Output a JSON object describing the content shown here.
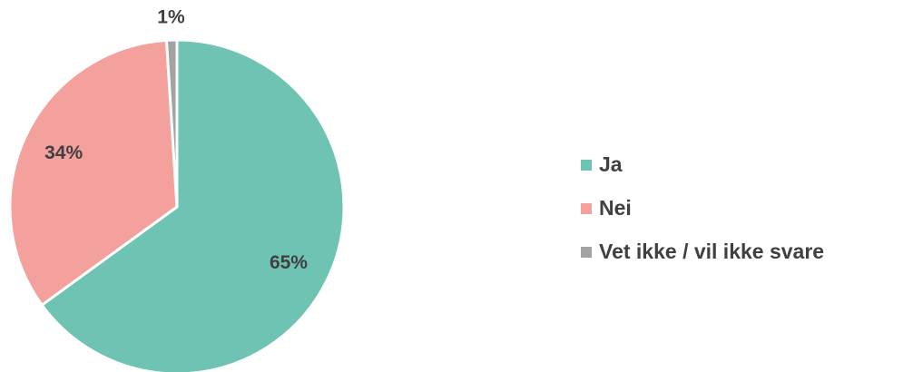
{
  "chart_data": {
    "type": "pie",
    "categories": [
      "Ja",
      "Nei",
      "Vet ikke / vil ikke svare"
    ],
    "values": [
      65,
      34,
      1
    ],
    "value_labels": [
      "65%",
      "34%",
      "1%"
    ],
    "colors": [
      "#6fc3b3",
      "#f4a09d",
      "#a3a3a3"
    ],
    "legend": "right"
  }
}
